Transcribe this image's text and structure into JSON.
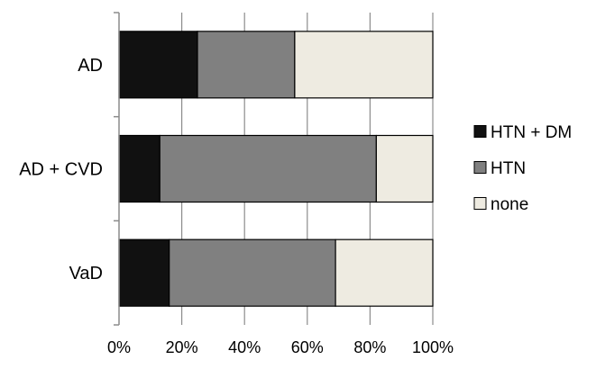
{
  "chart_data": {
    "type": "bar",
    "orientation": "horizontal",
    "stacked": true,
    "percent_stacked": true,
    "categories": [
      "AD",
      "AD + CVD",
      "VaD"
    ],
    "series": [
      {
        "name": "HTN + DM",
        "values": [
          25,
          13,
          16
        ],
        "color": "#111111"
      },
      {
        "name": "HTN",
        "values": [
          31,
          69,
          53
        ],
        "color": "#808080"
      },
      {
        "name": "none",
        "values": [
          44,
          18,
          31
        ],
        "color": "#eeebe1"
      }
    ],
    "xlim": [
      0,
      100
    ],
    "x_ticks": [
      "0%",
      "20%",
      "40%",
      "60%",
      "80%",
      "100%"
    ],
    "grid": "vertical",
    "legend": "right"
  }
}
